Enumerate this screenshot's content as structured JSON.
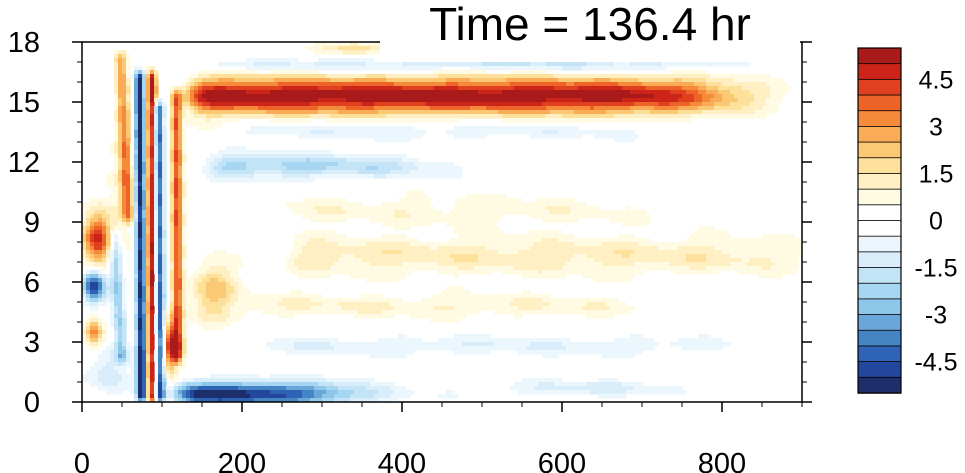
{
  "figure": {
    "title": "Time = 136.4 hr"
  },
  "chart_data": {
    "type": "heatmap",
    "title": "Time = 136.4 hr",
    "xlabel": "",
    "ylabel": "",
    "xlim": [
      0,
      900
    ],
    "ylim": [
      0,
      18
    ],
    "x_ticks": [
      0,
      200,
      400,
      600,
      800
    ],
    "y_ticks": [
      0,
      3,
      6,
      9,
      12,
      15,
      18
    ],
    "x_tick_labels": [
      "0",
      "200",
      "400",
      "600",
      "800"
    ],
    "y_tick_labels": [
      "0",
      "3",
      "6",
      "9",
      "12",
      "15",
      "18"
    ],
    "colorbar": {
      "levels": [
        -5.5,
        -5,
        -4.5,
        -4,
        -3.5,
        -3,
        -2.5,
        -2,
        -1.5,
        -1,
        -0.5,
        0,
        0.5,
        1,
        1.5,
        2,
        2.5,
        3,
        3.5,
        4,
        4.5,
        5,
        5.5
      ],
      "colors": [
        "#1c2f6b",
        "#23479c",
        "#2f63b6",
        "#4585c4",
        "#6aa6d7",
        "#8dc7ea",
        "#a7d6f2",
        "#c3e4f6",
        "#d9eefa",
        "#ecf7fd",
        "#ffffff",
        "#ffffff",
        "#fffbe3",
        "#ffefc2",
        "#fde19a",
        "#fbc973",
        "#f9ac55",
        "#f68a3b",
        "#ee6428",
        "#e0401d",
        "#cc2419",
        "#a91a1a"
      ],
      "labels": [
        "4.5",
        "3",
        "1.5",
        "0",
        "-1.5",
        "-3",
        "-4.5"
      ],
      "label_values": [
        4.5,
        3,
        1.5,
        0,
        -1.5,
        -3,
        -4.5
      ]
    },
    "features": [
      {
        "kind": "band",
        "x0": 135,
        "x1": 800,
        "y": 15.3,
        "halfwidth": 0.9,
        "amplitude": 5.5
      },
      {
        "kind": "band",
        "x0": 160,
        "x1": 420,
        "y": 11.8,
        "halfwidth": 0.6,
        "amplitude": -2.2
      },
      {
        "kind": "band",
        "x0": 120,
        "x1": 320,
        "y": 0.4,
        "halfwidth": 0.6,
        "amplitude": -5.5
      },
      {
        "kind": "band",
        "x0": 150,
        "x1": 800,
        "y": 16.8,
        "halfwidth": 0.3,
        "amplitude": -1.2
      },
      {
        "kind": "band",
        "x0": 260,
        "x1": 900,
        "y": 7.3,
        "halfwidth": 1.0,
        "amplitude": 1.3
      },
      {
        "kind": "band",
        "x0": 250,
        "x1": 700,
        "y": 9.6,
        "halfwidth": 0.8,
        "amplitude": 0.8
      },
      {
        "kind": "band",
        "x0": 200,
        "x1": 700,
        "y": 4.8,
        "halfwidth": 0.6,
        "amplitude": 1.0
      },
      {
        "kind": "band",
        "x0": 230,
        "x1": 800,
        "y": 2.8,
        "halfwidth": 0.5,
        "amplitude": -0.9
      },
      {
        "kind": "band",
        "x0": 200,
        "x1": 700,
        "y": 13.6,
        "halfwidth": 0.5,
        "amplitude": -0.9
      },
      {
        "kind": "blob",
        "x": 20,
        "y": 8.1,
        "sx": 18,
        "sy": 1.3,
        "amplitude": 4.5
      },
      {
        "kind": "blob",
        "x": 15,
        "y": 5.8,
        "sx": 14,
        "sy": 0.8,
        "amplitude": -5.0
      },
      {
        "kind": "blob",
        "x": 15,
        "y": 3.5,
        "sx": 12,
        "sy": 0.8,
        "amplitude": 3.2
      },
      {
        "kind": "blob",
        "x": 35,
        "y": 1.5,
        "sx": 25,
        "sy": 1.2,
        "amplitude": -1.5
      },
      {
        "kind": "blob",
        "x": 55,
        "y": 10.0,
        "sx": 20,
        "sy": 3.0,
        "amplitude": 1.0
      },
      {
        "kind": "blob",
        "x": 110,
        "y": 2.8,
        "sx": 10,
        "sy": 1.3,
        "amplitude": 4.5
      },
      {
        "kind": "blob",
        "x": 165,
        "y": 5.5,
        "sx": 30,
        "sy": 1.5,
        "amplitude": 2.2
      },
      {
        "kind": "blob",
        "x": 630,
        "y": 0.7,
        "sx": 120,
        "sy": 0.4,
        "amplitude": -1.2
      },
      {
        "kind": "blob",
        "x": 560,
        "y": 17.2,
        "sx": 200,
        "sy": 0.35,
        "amplitude": -1.3
      },
      {
        "kind": "blob",
        "x": 340,
        "y": 17.7,
        "sx": 40,
        "sy": 0.3,
        "amplitude": 2.0
      },
      {
        "kind": "streak",
        "x0": 75,
        "y0": 0,
        "x1": 72,
        "y1": 16.5,
        "width": 7,
        "amplitude": -5.5
      },
      {
        "kind": "streak",
        "x0": 86,
        "y0": 0,
        "x1": 87,
        "y1": 16.5,
        "width": 6,
        "amplitude": 5.5
      },
      {
        "kind": "streak",
        "x0": 98,
        "y0": 0,
        "x1": 95,
        "y1": 15.0,
        "width": 6,
        "amplitude": -4.5
      },
      {
        "kind": "streak",
        "x0": 120,
        "y0": 2,
        "x1": 118,
        "y1": 15.5,
        "width": 7,
        "amplitude": 4.0
      },
      {
        "kind": "streak",
        "x0": 58,
        "y0": 9,
        "x1": 48,
        "y1": 17.5,
        "width": 8,
        "amplitude": 3.0
      },
      {
        "kind": "streak",
        "x0": 50,
        "y0": 2,
        "x1": 40,
        "y1": 8.5,
        "width": 8,
        "amplitude": -2.5
      }
    ]
  }
}
